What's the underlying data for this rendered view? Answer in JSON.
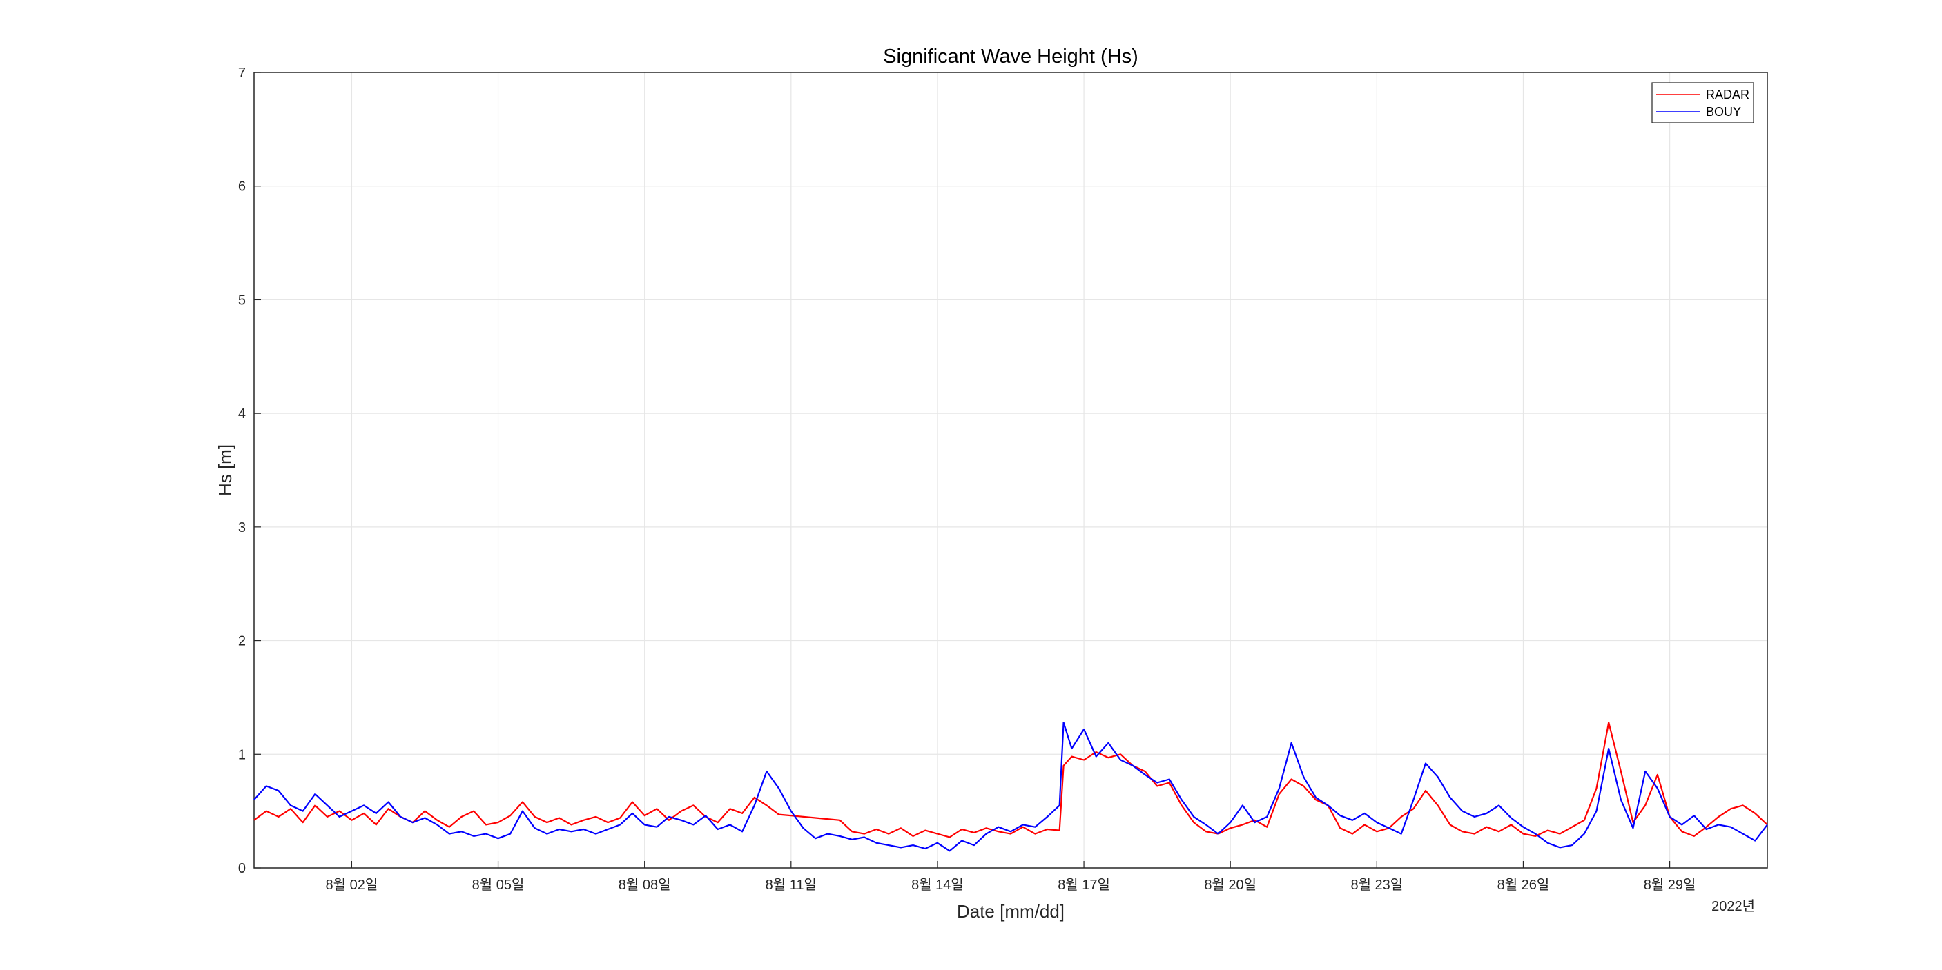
{
  "chart_data": {
    "type": "line",
    "title": "Significant Wave Height (Hs)",
    "xlabel": "Date [mm/dd]",
    "ylabel": "Hs [m]",
    "year_label": "2022년",
    "xlim": [
      "2022-07-31T00:00",
      "2022-08-31T00:00"
    ],
    "ylim": [
      0,
      7
    ],
    "yticks": [
      "0",
      "1",
      "2",
      "3",
      "4",
      "5",
      "6",
      "7"
    ],
    "xticks": [
      {
        "date": "2022-08-02",
        "label": "8월 02일"
      },
      {
        "date": "2022-08-05",
        "label": "8월 05일"
      },
      {
        "date": "2022-08-08",
        "label": "8월 08일"
      },
      {
        "date": "2022-08-11",
        "label": "8월 11일"
      },
      {
        "date": "2022-08-14",
        "label": "8월 14일"
      },
      {
        "date": "2022-08-17",
        "label": "8월 17일"
      },
      {
        "date": "2022-08-20",
        "label": "8월 20일"
      },
      {
        "date": "2022-08-23",
        "label": "8월 23일"
      },
      {
        "date": "2022-08-26",
        "label": "8월 26일"
      },
      {
        "date": "2022-08-29",
        "label": "8월 29일"
      }
    ],
    "grid": true,
    "legend_position": "top-right",
    "series": [
      {
        "name": "RADAR",
        "color": "#ff0000",
        "points": [
          [
            "2022-07-31T00:00",
            0.42
          ],
          [
            "2022-07-31T06:00",
            0.5
          ],
          [
            "2022-07-31T12:00",
            0.45
          ],
          [
            "2022-07-31T18:00",
            0.52
          ],
          [
            "2022-08-01T00:00",
            0.4
          ],
          [
            "2022-08-01T06:00",
            0.55
          ],
          [
            "2022-08-01T12:00",
            0.45
          ],
          [
            "2022-08-01T18:00",
            0.5
          ],
          [
            "2022-08-02T00:00",
            0.42
          ],
          [
            "2022-08-02T06:00",
            0.48
          ],
          [
            "2022-08-02T12:00",
            0.38
          ],
          [
            "2022-08-02T18:00",
            0.52
          ],
          [
            "2022-08-03T00:00",
            0.45
          ],
          [
            "2022-08-03T06:00",
            0.4
          ],
          [
            "2022-08-03T12:00",
            0.5
          ],
          [
            "2022-08-03T18:00",
            0.42
          ],
          [
            "2022-08-04T00:00",
            0.36
          ],
          [
            "2022-08-04T06:00",
            0.45
          ],
          [
            "2022-08-04T12:00",
            0.5
          ],
          [
            "2022-08-04T18:00",
            0.38
          ],
          [
            "2022-08-05T00:00",
            0.4
          ],
          [
            "2022-08-05T06:00",
            0.46
          ],
          [
            "2022-08-05T12:00",
            0.58
          ],
          [
            "2022-08-05T18:00",
            0.45
          ],
          [
            "2022-08-06T00:00",
            0.4
          ],
          [
            "2022-08-06T06:00",
            0.44
          ],
          [
            "2022-08-06T12:00",
            0.38
          ],
          [
            "2022-08-06T18:00",
            0.42
          ],
          [
            "2022-08-07T00:00",
            0.45
          ],
          [
            "2022-08-07T06:00",
            0.4
          ],
          [
            "2022-08-07T12:00",
            0.44
          ],
          [
            "2022-08-07T18:00",
            0.58
          ],
          [
            "2022-08-08T00:00",
            0.46
          ],
          [
            "2022-08-08T06:00",
            0.52
          ],
          [
            "2022-08-08T12:00",
            0.42
          ],
          [
            "2022-08-08T18:00",
            0.5
          ],
          [
            "2022-08-09T00:00",
            0.55
          ],
          [
            "2022-08-09T06:00",
            0.45
          ],
          [
            "2022-08-09T12:00",
            0.4
          ],
          [
            "2022-08-09T18:00",
            0.52
          ],
          [
            "2022-08-10T00:00",
            0.48
          ],
          [
            "2022-08-10T06:00",
            0.62
          ],
          [
            "2022-08-10T12:00",
            0.55
          ],
          [
            "2022-08-10T18:00",
            0.47
          ],
          [
            "2022-08-11T00:00",
            0.46
          ],
          [
            "2022-08-11T12:00",
            0.44
          ],
          [
            "2022-08-12T00:00",
            0.42
          ],
          [
            "2022-08-12T06:00",
            0.32
          ],
          [
            "2022-08-12T12:00",
            0.3
          ],
          [
            "2022-08-12T18:00",
            0.34
          ],
          [
            "2022-08-13T00:00",
            0.3
          ],
          [
            "2022-08-13T06:00",
            0.35
          ],
          [
            "2022-08-13T12:00",
            0.28
          ],
          [
            "2022-08-13T18:00",
            0.33
          ],
          [
            "2022-08-14T00:00",
            0.3
          ],
          [
            "2022-08-14T06:00",
            0.27
          ],
          [
            "2022-08-14T12:00",
            0.34
          ],
          [
            "2022-08-14T18:00",
            0.31
          ],
          [
            "2022-08-15T00:00",
            0.35
          ],
          [
            "2022-08-15T06:00",
            0.32
          ],
          [
            "2022-08-15T12:00",
            0.3
          ],
          [
            "2022-08-15T18:00",
            0.36
          ],
          [
            "2022-08-16T00:00",
            0.3
          ],
          [
            "2022-08-16T06:00",
            0.34
          ],
          [
            "2022-08-16T12:00",
            0.33
          ],
          [
            "2022-08-16T14:00",
            0.9
          ],
          [
            "2022-08-16T18:00",
            0.98
          ],
          [
            "2022-08-17T00:00",
            0.95
          ],
          [
            "2022-08-17T06:00",
            1.02
          ],
          [
            "2022-08-17T12:00",
            0.97
          ],
          [
            "2022-08-17T18:00",
            1.0
          ],
          [
            "2022-08-18T00:00",
            0.9
          ],
          [
            "2022-08-18T06:00",
            0.85
          ],
          [
            "2022-08-18T12:00",
            0.72
          ],
          [
            "2022-08-18T18:00",
            0.75
          ],
          [
            "2022-08-19T00:00",
            0.55
          ],
          [
            "2022-08-19T06:00",
            0.4
          ],
          [
            "2022-08-19T12:00",
            0.32
          ],
          [
            "2022-08-19T18:00",
            0.3
          ],
          [
            "2022-08-20T00:00",
            0.35
          ],
          [
            "2022-08-20T06:00",
            0.38
          ],
          [
            "2022-08-20T12:00",
            0.42
          ],
          [
            "2022-08-20T18:00",
            0.36
          ],
          [
            "2022-08-21T00:00",
            0.65
          ],
          [
            "2022-08-21T06:00",
            0.78
          ],
          [
            "2022-08-21T12:00",
            0.72
          ],
          [
            "2022-08-21T18:00",
            0.6
          ],
          [
            "2022-08-22T00:00",
            0.55
          ],
          [
            "2022-08-22T06:00",
            0.35
          ],
          [
            "2022-08-22T12:00",
            0.3
          ],
          [
            "2022-08-22T18:00",
            0.38
          ],
          [
            "2022-08-23T00:00",
            0.32
          ],
          [
            "2022-08-23T06:00",
            0.35
          ],
          [
            "2022-08-23T12:00",
            0.45
          ],
          [
            "2022-08-23T18:00",
            0.52
          ],
          [
            "2022-08-24T00:00",
            0.68
          ],
          [
            "2022-08-24T06:00",
            0.55
          ],
          [
            "2022-08-24T12:00",
            0.38
          ],
          [
            "2022-08-24T18:00",
            0.32
          ],
          [
            "2022-08-25T00:00",
            0.3
          ],
          [
            "2022-08-25T06:00",
            0.36
          ],
          [
            "2022-08-25T12:00",
            0.32
          ],
          [
            "2022-08-25T18:00",
            0.38
          ],
          [
            "2022-08-26T00:00",
            0.3
          ],
          [
            "2022-08-26T06:00",
            0.28
          ],
          [
            "2022-08-26T12:00",
            0.33
          ],
          [
            "2022-08-26T18:00",
            0.3
          ],
          [
            "2022-08-27T00:00",
            0.36
          ],
          [
            "2022-08-27T06:00",
            0.42
          ],
          [
            "2022-08-27T12:00",
            0.7
          ],
          [
            "2022-08-27T18:00",
            1.28
          ],
          [
            "2022-08-28T00:00",
            0.85
          ],
          [
            "2022-08-28T06:00",
            0.4
          ],
          [
            "2022-08-28T12:00",
            0.55
          ],
          [
            "2022-08-28T18:00",
            0.82
          ],
          [
            "2022-08-29T00:00",
            0.45
          ],
          [
            "2022-08-29T06:00",
            0.32
          ],
          [
            "2022-08-29T12:00",
            0.28
          ],
          [
            "2022-08-29T18:00",
            0.36
          ],
          [
            "2022-08-30T00:00",
            0.45
          ],
          [
            "2022-08-30T06:00",
            0.52
          ],
          [
            "2022-08-30T12:00",
            0.55
          ],
          [
            "2022-08-30T18:00",
            0.48
          ],
          [
            "2022-08-31T00:00",
            0.38
          ]
        ]
      },
      {
        "name": "BOUY",
        "color": "#0000ff",
        "points": [
          [
            "2022-07-31T00:00",
            0.6
          ],
          [
            "2022-07-31T06:00",
            0.72
          ],
          [
            "2022-07-31T12:00",
            0.68
          ],
          [
            "2022-07-31T18:00",
            0.55
          ],
          [
            "2022-08-01T00:00",
            0.5
          ],
          [
            "2022-08-01T06:00",
            0.65
          ],
          [
            "2022-08-01T12:00",
            0.55
          ],
          [
            "2022-08-01T18:00",
            0.45
          ],
          [
            "2022-08-02T00:00",
            0.5
          ],
          [
            "2022-08-02T06:00",
            0.55
          ],
          [
            "2022-08-02T12:00",
            0.48
          ],
          [
            "2022-08-02T18:00",
            0.58
          ],
          [
            "2022-08-03T00:00",
            0.45
          ],
          [
            "2022-08-03T06:00",
            0.4
          ],
          [
            "2022-08-03T12:00",
            0.44
          ],
          [
            "2022-08-03T18:00",
            0.38
          ],
          [
            "2022-08-04T00:00",
            0.3
          ],
          [
            "2022-08-04T06:00",
            0.32
          ],
          [
            "2022-08-04T12:00",
            0.28
          ],
          [
            "2022-08-04T18:00",
            0.3
          ],
          [
            "2022-08-05T00:00",
            0.26
          ],
          [
            "2022-08-05T06:00",
            0.3
          ],
          [
            "2022-08-05T12:00",
            0.5
          ],
          [
            "2022-08-05T18:00",
            0.35
          ],
          [
            "2022-08-06T00:00",
            0.3
          ],
          [
            "2022-08-06T06:00",
            0.34
          ],
          [
            "2022-08-06T12:00",
            0.32
          ],
          [
            "2022-08-06T18:00",
            0.34
          ],
          [
            "2022-08-07T00:00",
            0.3
          ],
          [
            "2022-08-07T06:00",
            0.34
          ],
          [
            "2022-08-07T12:00",
            0.38
          ],
          [
            "2022-08-07T18:00",
            0.48
          ],
          [
            "2022-08-08T00:00",
            0.38
          ],
          [
            "2022-08-08T06:00",
            0.36
          ],
          [
            "2022-08-08T12:00",
            0.45
          ],
          [
            "2022-08-08T18:00",
            0.42
          ],
          [
            "2022-08-09T00:00",
            0.38
          ],
          [
            "2022-08-09T06:00",
            0.46
          ],
          [
            "2022-08-09T12:00",
            0.34
          ],
          [
            "2022-08-09T18:00",
            0.38
          ],
          [
            "2022-08-10T00:00",
            0.32
          ],
          [
            "2022-08-10T06:00",
            0.55
          ],
          [
            "2022-08-10T12:00",
            0.85
          ],
          [
            "2022-08-10T18:00",
            0.7
          ],
          [
            "2022-08-11T00:00",
            0.5
          ],
          [
            "2022-08-11T06:00",
            0.35
          ],
          [
            "2022-08-11T12:00",
            0.26
          ],
          [
            "2022-08-11T18:00",
            0.3
          ],
          [
            "2022-08-12T00:00",
            0.28
          ],
          [
            "2022-08-12T06:00",
            0.25
          ],
          [
            "2022-08-12T12:00",
            0.27
          ],
          [
            "2022-08-12T18:00",
            0.22
          ],
          [
            "2022-08-13T00:00",
            0.2
          ],
          [
            "2022-08-13T06:00",
            0.18
          ],
          [
            "2022-08-13T12:00",
            0.2
          ],
          [
            "2022-08-13T18:00",
            0.17
          ],
          [
            "2022-08-14T00:00",
            0.22
          ],
          [
            "2022-08-14T06:00",
            0.15
          ],
          [
            "2022-08-14T12:00",
            0.24
          ],
          [
            "2022-08-14T18:00",
            0.2
          ],
          [
            "2022-08-15T00:00",
            0.3
          ],
          [
            "2022-08-15T06:00",
            0.36
          ],
          [
            "2022-08-15T12:00",
            0.32
          ],
          [
            "2022-08-15T18:00",
            0.38
          ],
          [
            "2022-08-16T00:00",
            0.36
          ],
          [
            "2022-08-16T06:00",
            0.45
          ],
          [
            "2022-08-16T12:00",
            0.55
          ],
          [
            "2022-08-16T14:00",
            1.28
          ],
          [
            "2022-08-16T18:00",
            1.05
          ],
          [
            "2022-08-17T00:00",
            1.22
          ],
          [
            "2022-08-17T06:00",
            0.98
          ],
          [
            "2022-08-17T12:00",
            1.1
          ],
          [
            "2022-08-17T18:00",
            0.95
          ],
          [
            "2022-08-18T00:00",
            0.9
          ],
          [
            "2022-08-18T06:00",
            0.82
          ],
          [
            "2022-08-18T12:00",
            0.75
          ],
          [
            "2022-08-18T18:00",
            0.78
          ],
          [
            "2022-08-19T00:00",
            0.6
          ],
          [
            "2022-08-19T06:00",
            0.45
          ],
          [
            "2022-08-19T12:00",
            0.38
          ],
          [
            "2022-08-19T18:00",
            0.3
          ],
          [
            "2022-08-20T00:00",
            0.4
          ],
          [
            "2022-08-20T06:00",
            0.55
          ],
          [
            "2022-08-20T12:00",
            0.4
          ],
          [
            "2022-08-20T18:00",
            0.45
          ],
          [
            "2022-08-21T00:00",
            0.7
          ],
          [
            "2022-08-21T06:00",
            1.1
          ],
          [
            "2022-08-21T12:00",
            0.8
          ],
          [
            "2022-08-21T18:00",
            0.62
          ],
          [
            "2022-08-22T00:00",
            0.55
          ],
          [
            "2022-08-22T06:00",
            0.46
          ],
          [
            "2022-08-22T12:00",
            0.42
          ],
          [
            "2022-08-22T18:00",
            0.48
          ],
          [
            "2022-08-23T00:00",
            0.4
          ],
          [
            "2022-08-23T06:00",
            0.35
          ],
          [
            "2022-08-23T12:00",
            0.3
          ],
          [
            "2022-08-23T18:00",
            0.6
          ],
          [
            "2022-08-24T00:00",
            0.92
          ],
          [
            "2022-08-24T06:00",
            0.8
          ],
          [
            "2022-08-24T12:00",
            0.62
          ],
          [
            "2022-08-24T18:00",
            0.5
          ],
          [
            "2022-08-25T00:00",
            0.45
          ],
          [
            "2022-08-25T06:00",
            0.48
          ],
          [
            "2022-08-25T12:00",
            0.55
          ],
          [
            "2022-08-25T18:00",
            0.44
          ],
          [
            "2022-08-26T00:00",
            0.36
          ],
          [
            "2022-08-26T06:00",
            0.3
          ],
          [
            "2022-08-26T12:00",
            0.22
          ],
          [
            "2022-08-26T18:00",
            0.18
          ],
          [
            "2022-08-27T00:00",
            0.2
          ],
          [
            "2022-08-27T06:00",
            0.3
          ],
          [
            "2022-08-27T12:00",
            0.5
          ],
          [
            "2022-08-27T18:00",
            1.05
          ],
          [
            "2022-08-28T00:00",
            0.6
          ],
          [
            "2022-08-28T06:00",
            0.35
          ],
          [
            "2022-08-28T12:00",
            0.85
          ],
          [
            "2022-08-28T18:00",
            0.7
          ],
          [
            "2022-08-29T00:00",
            0.45
          ],
          [
            "2022-08-29T06:00",
            0.38
          ],
          [
            "2022-08-29T12:00",
            0.46
          ],
          [
            "2022-08-29T18:00",
            0.34
          ],
          [
            "2022-08-30T00:00",
            0.38
          ],
          [
            "2022-08-30T06:00",
            0.36
          ],
          [
            "2022-08-30T12:00",
            0.3
          ],
          [
            "2022-08-30T18:00",
            0.24
          ],
          [
            "2022-08-31T00:00",
            0.38
          ]
        ]
      }
    ]
  }
}
